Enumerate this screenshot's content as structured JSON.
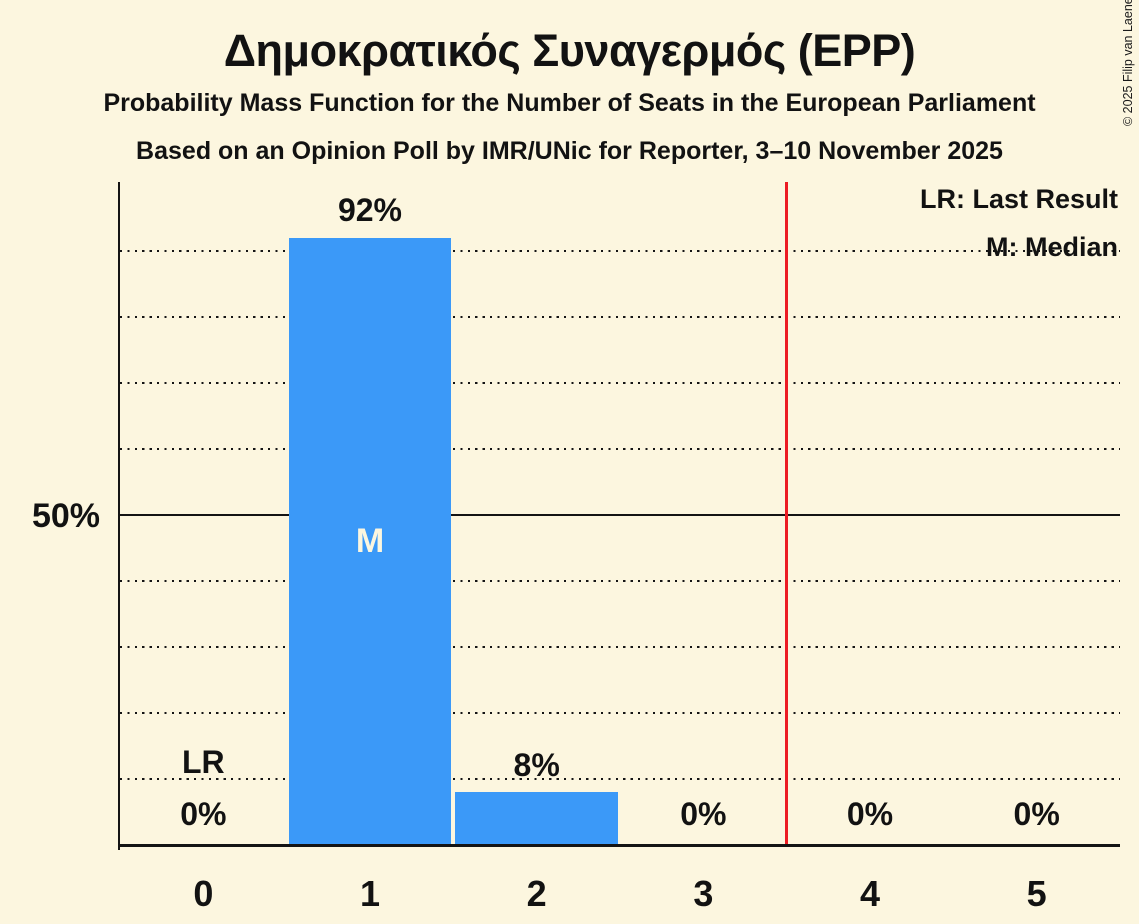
{
  "title": "Δημοκρατικός Συναγερμός (EPP)",
  "subtitle1": "Probability Mass Function for the Number of Seats in the European Parliament",
  "subtitle2": "Based on an Opinion Poll by IMR/UNic for Reporter, 3–10 November 2025",
  "copyright": "© 2025 Filip van Laenen",
  "legend": {
    "lr": "LR: Last Result",
    "m": "M: Median"
  },
  "y_axis_label": "50%",
  "colors": {
    "background": "#FCF6DF",
    "bar": "#3B99F8",
    "red_line": "#EC1B23",
    "ink": "#141414",
    "bar_inner_label": "#FCF6DF"
  },
  "chart_data": {
    "type": "bar",
    "categories": [
      "0",
      "1",
      "2",
      "3",
      "4",
      "5"
    ],
    "values": [
      0,
      92,
      8,
      0,
      0,
      0
    ],
    "bar_labels": [
      "0%",
      "92%",
      "8%",
      "0%",
      "0%",
      "0%"
    ],
    "title": "Δημοκρατικός Συναγερμός (EPP)",
    "subtitle": "Probability Mass Function for the Number of Seats in the European Parliament",
    "xlabel": "",
    "ylabel": "",
    "ylim": [
      0,
      100
    ],
    "ytick_labels_shown": [
      "50%"
    ],
    "gridline_interval_pct": 10,
    "solid_gridline_pct": 50,
    "grid_style": "dotted horizontal",
    "legend_position": "top-right",
    "median": {
      "seat": 1,
      "label": "M"
    },
    "last_result": {
      "seat": 0,
      "label": "LR"
    },
    "red_line": {
      "x_seats": 3.5
    }
  }
}
